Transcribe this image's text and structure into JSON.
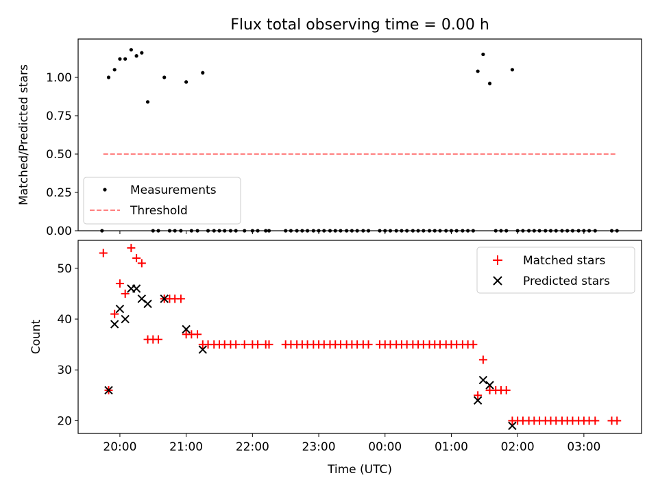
{
  "chart_data": [
    {
      "type": "scatter",
      "title": "Flux total observing time = 0.00 h",
      "xlabel": "",
      "ylabel": "Matched/Predicted stars",
      "ylim": [
        0,
        1.25
      ],
      "yticks": [
        0.0,
        0.25,
        0.5,
        0.75,
        1.0
      ],
      "ytick_labels": [
        "0.00",
        "0.25",
        "0.50",
        "0.75",
        "1.00"
      ],
      "grid": false,
      "legend_position": "lower-left",
      "series": [
        {
          "name": "Measurements",
          "style": "dot",
          "color": "#000000",
          "points": [
            [
              19.73,
              0.0
            ],
            [
              19.83,
              1.0
            ],
            [
              19.92,
              1.05
            ],
            [
              20.0,
              1.12
            ],
            [
              20.08,
              1.12
            ],
            [
              20.17,
              1.18
            ],
            [
              20.25,
              1.14
            ],
            [
              20.33,
              1.16
            ],
            [
              20.42,
              0.84
            ],
            [
              20.5,
              0.0
            ],
            [
              20.58,
              0.0
            ],
            [
              20.67,
              1.0
            ],
            [
              20.75,
              0.0
            ],
            [
              20.83,
              0.0
            ],
            [
              20.92,
              0.0
            ],
            [
              21.0,
              0.97
            ],
            [
              21.08,
              0.0
            ],
            [
              21.17,
              0.0
            ],
            [
              21.25,
              1.03
            ],
            [
              21.33,
              0.0
            ],
            [
              21.42,
              0.0
            ],
            [
              21.5,
              0.0
            ],
            [
              21.58,
              0.0
            ],
            [
              21.67,
              0.0
            ],
            [
              21.75,
              0.0
            ],
            [
              21.88,
              0.0
            ],
            [
              22.0,
              0.0
            ],
            [
              22.08,
              0.0
            ],
            [
              22.2,
              0.0
            ],
            [
              22.25,
              0.0
            ],
            [
              22.5,
              0.0
            ],
            [
              22.58,
              0.0
            ],
            [
              22.67,
              0.0
            ],
            [
              22.75,
              0.0
            ],
            [
              22.83,
              0.0
            ],
            [
              22.92,
              0.0
            ],
            [
              23.0,
              0.0
            ],
            [
              23.08,
              0.0
            ],
            [
              23.17,
              0.0
            ],
            [
              23.25,
              0.0
            ],
            [
              23.33,
              0.0
            ],
            [
              23.42,
              0.0
            ],
            [
              23.5,
              0.0
            ],
            [
              23.58,
              0.0
            ],
            [
              23.67,
              0.0
            ],
            [
              23.75,
              0.0
            ],
            [
              23.92,
              0.0
            ],
            [
              24.0,
              0.0
            ],
            [
              24.08,
              0.0
            ],
            [
              24.17,
              0.0
            ],
            [
              24.25,
              0.0
            ],
            [
              24.33,
              0.0
            ],
            [
              24.42,
              0.0
            ],
            [
              24.5,
              0.0
            ],
            [
              24.58,
              0.0
            ],
            [
              24.67,
              0.0
            ],
            [
              24.75,
              0.0
            ],
            [
              24.83,
              0.0
            ],
            [
              24.92,
              0.0
            ],
            [
              25.0,
              0.0
            ],
            [
              25.08,
              0.0
            ],
            [
              25.17,
              0.0
            ],
            [
              25.25,
              0.0
            ],
            [
              25.33,
              0.0
            ],
            [
              25.4,
              1.04
            ],
            [
              25.48,
              1.15
            ],
            [
              25.58,
              0.96
            ],
            [
              25.67,
              0.0
            ],
            [
              25.75,
              0.0
            ],
            [
              25.83,
              0.0
            ],
            [
              25.92,
              1.05
            ],
            [
              26.0,
              0.0
            ],
            [
              26.08,
              0.0
            ],
            [
              26.17,
              0.0
            ],
            [
              26.25,
              0.0
            ],
            [
              26.33,
              0.0
            ],
            [
              26.42,
              0.0
            ],
            [
              26.5,
              0.0
            ],
            [
              26.58,
              0.0
            ],
            [
              26.67,
              0.0
            ],
            [
              26.75,
              0.0
            ],
            [
              26.83,
              0.0
            ],
            [
              26.92,
              0.0
            ],
            [
              27.0,
              0.0
            ],
            [
              27.08,
              0.0
            ],
            [
              27.17,
              0.0
            ],
            [
              27.42,
              0.0
            ],
            [
              27.5,
              0.0
            ]
          ]
        },
        {
          "name": "Threshold",
          "style": "dashed-line",
          "color": "#ff7f7f",
          "points": [
            [
              19.75,
              0.5
            ],
            [
              27.5,
              0.5
            ]
          ]
        }
      ]
    },
    {
      "type": "scatter",
      "title": "",
      "xlabel": "Time (UTC)",
      "ylabel": "Count",
      "xlim_hours": [
        19.37,
        27.87
      ],
      "ylim": [
        17.5,
        55.5
      ],
      "yticks": [
        20,
        30,
        40,
        50
      ],
      "ytick_labels": [
        "20",
        "30",
        "40",
        "50"
      ],
      "xticks_hours": [
        20,
        21,
        22,
        23,
        24,
        25,
        26,
        27
      ],
      "xtick_labels": [
        "20:00",
        "21:00",
        "22:00",
        "23:00",
        "00:00",
        "01:00",
        "02:00",
        "03:00"
      ],
      "grid": false,
      "legend_position": "upper-right",
      "series": [
        {
          "name": "Matched stars",
          "marker": "plus",
          "color": "#ff0000",
          "points": [
            [
              19.75,
              53
            ],
            [
              19.83,
              26
            ],
            [
              19.92,
              41
            ],
            [
              20.0,
              47
            ],
            [
              20.08,
              45
            ],
            [
              20.17,
              54
            ],
            [
              20.25,
              52
            ],
            [
              20.33,
              51
            ],
            [
              20.42,
              36
            ],
            [
              20.5,
              36
            ],
            [
              20.58,
              36
            ],
            [
              20.67,
              44
            ],
            [
              20.75,
              44
            ],
            [
              20.83,
              44
            ],
            [
              20.92,
              44
            ],
            [
              21.0,
              37
            ],
            [
              21.08,
              37
            ],
            [
              21.17,
              37
            ],
            [
              21.25,
              35
            ],
            [
              21.33,
              35
            ],
            [
              21.42,
              35
            ],
            [
              21.5,
              35
            ],
            [
              21.58,
              35
            ],
            [
              21.67,
              35
            ],
            [
              21.75,
              35
            ],
            [
              21.88,
              35
            ],
            [
              22.0,
              35
            ],
            [
              22.08,
              35
            ],
            [
              22.2,
              35
            ],
            [
              22.25,
              35
            ],
            [
              22.5,
              35
            ],
            [
              22.58,
              35
            ],
            [
              22.67,
              35
            ],
            [
              22.75,
              35
            ],
            [
              22.83,
              35
            ],
            [
              22.92,
              35
            ],
            [
              23.0,
              35
            ],
            [
              23.08,
              35
            ],
            [
              23.17,
              35
            ],
            [
              23.25,
              35
            ],
            [
              23.33,
              35
            ],
            [
              23.42,
              35
            ],
            [
              23.5,
              35
            ],
            [
              23.58,
              35
            ],
            [
              23.67,
              35
            ],
            [
              23.75,
              35
            ],
            [
              23.92,
              35
            ],
            [
              24.0,
              35
            ],
            [
              24.08,
              35
            ],
            [
              24.17,
              35
            ],
            [
              24.25,
              35
            ],
            [
              24.33,
              35
            ],
            [
              24.42,
              35
            ],
            [
              24.5,
              35
            ],
            [
              24.58,
              35
            ],
            [
              24.67,
              35
            ],
            [
              24.75,
              35
            ],
            [
              24.83,
              35
            ],
            [
              24.92,
              35
            ],
            [
              25.0,
              35
            ],
            [
              25.08,
              35
            ],
            [
              25.17,
              35
            ],
            [
              25.25,
              35
            ],
            [
              25.33,
              35
            ],
            [
              25.4,
              25
            ],
            [
              25.48,
              32
            ],
            [
              25.58,
              26
            ],
            [
              25.67,
              26
            ],
            [
              25.75,
              26
            ],
            [
              25.83,
              26
            ],
            [
              25.92,
              20
            ],
            [
              26.0,
              20
            ],
            [
              26.08,
              20
            ],
            [
              26.17,
              20
            ],
            [
              26.25,
              20
            ],
            [
              26.33,
              20
            ],
            [
              26.42,
              20
            ],
            [
              26.5,
              20
            ],
            [
              26.58,
              20
            ],
            [
              26.67,
              20
            ],
            [
              26.75,
              20
            ],
            [
              26.83,
              20
            ],
            [
              26.92,
              20
            ],
            [
              27.0,
              20
            ],
            [
              27.08,
              20
            ],
            [
              27.17,
              20
            ],
            [
              27.42,
              20
            ],
            [
              27.5,
              20
            ]
          ]
        },
        {
          "name": "Predicted stars",
          "marker": "x",
          "color": "#000000",
          "points": [
            [
              19.83,
              26
            ],
            [
              19.92,
              39
            ],
            [
              20.0,
              42
            ],
            [
              20.08,
              40
            ],
            [
              20.17,
              46
            ],
            [
              20.25,
              46
            ],
            [
              20.33,
              44
            ],
            [
              20.42,
              43
            ],
            [
              20.67,
              44
            ],
            [
              21.0,
              38
            ],
            [
              21.25,
              34
            ],
            [
              25.4,
              24
            ],
            [
              25.48,
              28
            ],
            [
              25.58,
              27
            ],
            [
              25.92,
              19
            ]
          ]
        }
      ]
    }
  ]
}
